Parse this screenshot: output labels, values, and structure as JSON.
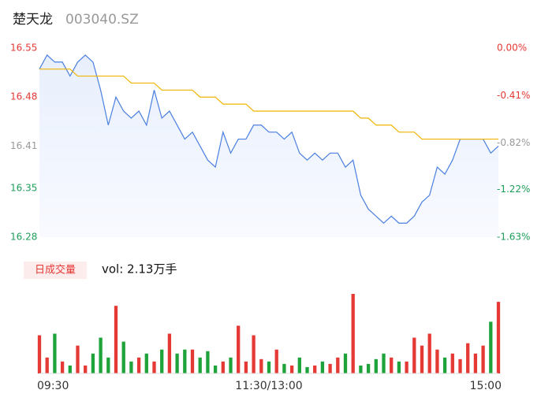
{
  "header": {
    "name": "楚天龙",
    "code": "003040.SZ"
  },
  "chart_data": {
    "type": "line",
    "xlim": [
      0,
      240
    ],
    "xticks": [
      {
        "value": 0,
        "label": "09:30"
      },
      {
        "value": 120,
        "label": "11:30/13:00"
      },
      {
        "value": 240,
        "label": "15:00"
      }
    ],
    "ylim": [
      16.28,
      16.55
    ],
    "yticks": [
      16.55,
      16.48,
      16.41,
      16.35,
      16.28
    ],
    "y2lim": [
      -1.63,
      0
    ],
    "y2ticks": [
      {
        "value": 0,
        "label": "0.00%"
      },
      {
        "value": -0.41,
        "label": "-0.41%"
      },
      {
        "value": -0.82,
        "label": "-0.82%"
      },
      {
        "value": -1.22,
        "label": "-1.22%"
      },
      {
        "value": -1.63,
        "label": "-1.63%"
      }
    ],
    "tick_colors": [
      "#e53935",
      "#e53935",
      "#999999",
      "#1e9e5a",
      "#1e9e5a"
    ],
    "x": [
      0,
      4,
      8,
      12,
      16,
      20,
      24,
      28,
      32,
      36,
      40,
      44,
      48,
      52,
      56,
      60,
      64,
      68,
      72,
      76,
      80,
      84,
      88,
      92,
      96,
      100,
      104,
      108,
      112,
      116,
      120,
      124,
      128,
      132,
      136,
      140,
      144,
      148,
      152,
      156,
      160,
      164,
      168,
      172,
      176,
      180,
      184,
      188,
      192,
      196,
      200,
      204,
      208,
      212,
      216,
      220,
      224,
      228,
      232,
      236,
      240
    ],
    "series": [
      {
        "name": "price",
        "color": "#4a7fe0",
        "values": [
          16.52,
          16.54,
          16.53,
          16.53,
          16.51,
          16.53,
          16.54,
          16.53,
          16.49,
          16.44,
          16.48,
          16.46,
          16.45,
          16.46,
          16.44,
          16.49,
          16.45,
          16.46,
          16.44,
          16.42,
          16.43,
          16.41,
          16.39,
          16.38,
          16.43,
          16.4,
          16.42,
          16.42,
          16.44,
          16.44,
          16.43,
          16.43,
          16.42,
          16.43,
          16.4,
          16.39,
          16.4,
          16.39,
          16.4,
          16.4,
          16.38,
          16.39,
          16.34,
          16.32,
          16.31,
          16.3,
          16.31,
          16.3,
          16.3,
          16.31,
          16.33,
          16.34,
          16.38,
          16.37,
          16.39,
          16.42,
          16.42,
          16.42,
          16.42,
          16.4,
          16.41
        ]
      },
      {
        "name": "average",
        "color": "#f0b400",
        "values": [
          16.52,
          16.52,
          16.52,
          16.52,
          16.52,
          16.51,
          16.51,
          16.51,
          16.51,
          16.51,
          16.51,
          16.51,
          16.5,
          16.5,
          16.5,
          16.5,
          16.49,
          16.49,
          16.49,
          16.49,
          16.49,
          16.48,
          16.48,
          16.48,
          16.47,
          16.47,
          16.47,
          16.47,
          16.46,
          16.46,
          16.46,
          16.46,
          16.46,
          16.46,
          16.46,
          16.46,
          16.46,
          16.46,
          16.46,
          16.46,
          16.46,
          16.46,
          16.45,
          16.45,
          16.44,
          16.44,
          16.44,
          16.43,
          16.43,
          16.43,
          16.42,
          16.42,
          16.42,
          16.42,
          16.42,
          16.42,
          16.42,
          16.42,
          16.42,
          16.42,
          16.42
        ]
      }
    ],
    "volume": {
      "label": "日成交量",
      "summary": "vol: 2.13万手",
      "ylim": [
        0,
        100
      ],
      "up_color": "#e53935",
      "down_color": "#1ea33a",
      "values": [
        48,
        20,
        50,
        15,
        10,
        35,
        10,
        25,
        45,
        20,
        85,
        40,
        15,
        20,
        25,
        15,
        30,
        50,
        25,
        30,
        30,
        20,
        28,
        10,
        15,
        20,
        60,
        15,
        48,
        18,
        15,
        30,
        12,
        10,
        20,
        8,
        10,
        15,
        12,
        20,
        25,
        100,
        10,
        12,
        18,
        25,
        20,
        15,
        15,
        45,
        35,
        50,
        30,
        20,
        25,
        18,
        38,
        25,
        35,
        65,
        90
      ]
    }
  }
}
